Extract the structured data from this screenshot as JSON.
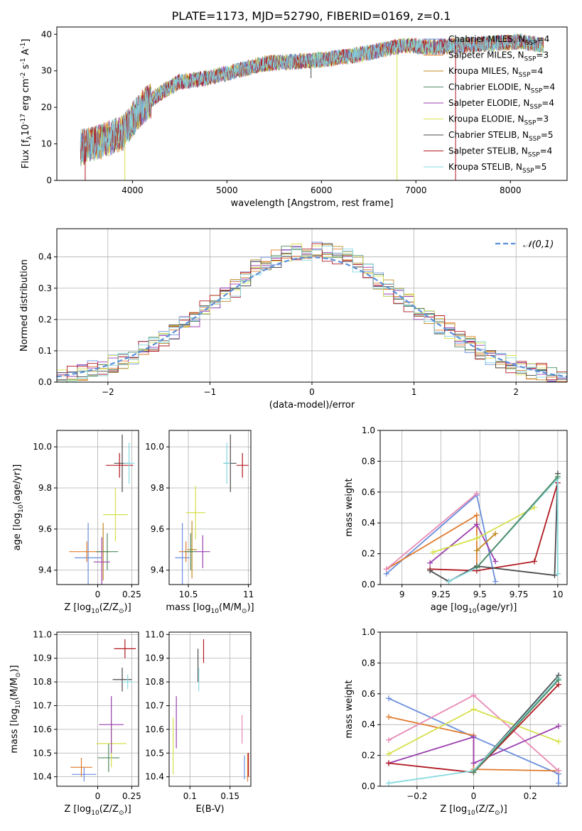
{
  "figure": {
    "title": "PLATE=1173, MJD=52790, FIBERID=0169, z=0.1"
  },
  "series_styles": [
    {
      "name": "Chabrier MILES, N$_{SSP}$=4",
      "color": "#6a8fdc"
    },
    {
      "name": "Salpeter MILES, N$_{SSP}$=3",
      "color": "#e07b2e"
    },
    {
      "name": "Kroupa MILES, N$_{SSP}$=4",
      "color": "#c08a20"
    },
    {
      "name": "Chabrier ELODIE, N$_{SSP}$=4",
      "color": "#4f8a62"
    },
    {
      "name": "Salpeter ELODIE, N$_{SSP}$=4",
      "color": "#9b3fae"
    },
    {
      "name": "Kroupa ELODIE, N$_{SSP}$=3",
      "color": "#d6e04a"
    },
    {
      "name": "Chabrier STELIB, N$_{SSP}$=5",
      "color": "#4a4a4a"
    },
    {
      "name": "Salpeter STELIB, N$_{SSP}$=4",
      "color": "#b01820"
    },
    {
      "name": "Kroupa STELIB, N$_{SSP}$=5",
      "color": "#86d9e0"
    }
  ],
  "chart_data": [
    {
      "id": "spectrum",
      "type": "line",
      "title": "PLATE=1173, MJD=52790, FIBERID=0169, z=0.1",
      "xlabel": "wavelength [Angstrom, rest frame]",
      "ylabel": "Flux [f$_\\lambda$10$^{-17}$ erg cm$^{-2}$ s$^{-1}$ A$^{-1}$]",
      "xlim": [
        3200,
        8600
      ],
      "ylim": [
        0,
        42
      ],
      "xticks": [
        4000,
        5000,
        6000,
        7000,
        8000
      ],
      "yticks": [
        0,
        10,
        20,
        30,
        40
      ],
      "legend": [
        "Chabrier MILES, N_SSP=4",
        "Salpeter MILES, N_SSP=3",
        "Kroupa MILES, N_SSP=4",
        "Chabrier ELODIE, N_SSP=4",
        "Salpeter ELODIE, N_SSP=4",
        "Kroupa ELODIE, N_SSP=3",
        "Chabrier STELIB, N_SSP=5",
        "Salpeter STELIB, N_SSP=4",
        "Kroupa STELIB, N_SSP=5"
      ],
      "legend_placement": "right",
      "continuum": {
        "x": [
          3450,
          3700,
          3900,
          4100,
          4300,
          4500,
          4800,
          5100,
          5400,
          5700,
          6000,
          6300,
          6600,
          6900,
          7200,
          7500,
          7800,
          8100,
          8350
        ],
        "y": [
          9,
          11,
          13,
          20,
          24,
          27,
          28,
          30,
          32,
          32.5,
          33,
          34,
          35.5,
          37,
          36.5,
          37,
          37.5,
          38,
          37
        ]
      },
      "dips": [
        [
          3500,
          0
        ],
        [
          3920,
          0
        ],
        [
          5890,
          28
        ],
        [
          6800,
          0
        ],
        [
          7420,
          0
        ]
      ]
    },
    {
      "id": "residuals",
      "type": "bar",
      "xlabel": "(data-model)/error",
      "ylabel": "Normed distribution",
      "xlim": [
        -2.5,
        2.5
      ],
      "ylim": [
        0,
        0.49
      ],
      "xticks": [
        -2,
        -1,
        0,
        1,
        2
      ],
      "yticks": [
        0.0,
        0.1,
        0.2,
        0.3,
        0.4
      ],
      "grid": true,
      "legend": [
        "$\\mathcal{N}(0,1)$"
      ],
      "legend_placement": "top-right"
    },
    {
      "id": "z-age",
      "type": "scatter",
      "xlabel": "Z [log$_{10}$(Z/Z$_\\odot$)]",
      "ylabel": "age  [log$_{10}$(age/yr)]",
      "xlim": [
        -0.3,
        0.3
      ],
      "ylim": [
        9.33,
        10.08
      ],
      "xticks": [
        0.0,
        0.25
      ],
      "yticks": [
        9.4,
        9.6,
        9.8,
        10.0
      ],
      "grid": true,
      "points": [
        {
          "s": 0,
          "x": -0.07,
          "y": 9.46,
          "xe": 0.1,
          "ye": 0.17
        },
        {
          "s": 1,
          "x": -0.08,
          "y": 9.49,
          "xe": 0.13,
          "ye": 0.05
        },
        {
          "s": 2,
          "x": 0.04,
          "y": 9.49,
          "xe": 0.05,
          "ye": 0.14
        },
        {
          "s": 3,
          "x": 0.07,
          "y": 9.49,
          "xe": 0.08,
          "ye": 0.09
        },
        {
          "s": 4,
          "x": 0.03,
          "y": 9.44,
          "xe": 0.06,
          "ye": 0.12
        },
        {
          "s": 5,
          "x": 0.13,
          "y": 9.67,
          "xe": 0.09,
          "ye": 0.13
        },
        {
          "s": 6,
          "x": 0.18,
          "y": 9.92,
          "xe": 0.06,
          "ye": 0.14
        },
        {
          "s": 7,
          "x": 0.16,
          "y": 9.91,
          "xe": 0.1,
          "ye": 0.06
        },
        {
          "s": 8,
          "x": 0.23,
          "y": 9.92,
          "xe": 0.04,
          "ye": 0.1
        }
      ]
    },
    {
      "id": "mass-age",
      "type": "scatter",
      "xlabel": "mass [log$_{10}$(M/M$_\\odot$)]",
      "ylabel": "",
      "xlim": [
        10.34,
        11.02
      ],
      "ylim": [
        9.33,
        10.08
      ],
      "xticks": [
        10.5,
        11.0
      ],
      "yticks": [
        9.4,
        9.6,
        9.8,
        10.0
      ],
      "grid": true,
      "points": [
        {
          "s": 0,
          "x": 10.45,
          "y": 9.46,
          "xe": 0.06,
          "ye": 0.17
        },
        {
          "s": 1,
          "x": 10.48,
          "y": 9.49,
          "xe": 0.06,
          "ye": 0.05
        },
        {
          "s": 2,
          "x": 10.53,
          "y": 9.5,
          "xe": 0.04,
          "ye": 0.14
        },
        {
          "s": 3,
          "x": 10.52,
          "y": 9.49,
          "xe": 0.05,
          "ye": 0.09
        },
        {
          "s": 4,
          "x": 10.62,
          "y": 9.49,
          "xe": 0.06,
          "ye": 0.08
        },
        {
          "s": 5,
          "x": 10.56,
          "y": 9.68,
          "xe": 0.08,
          "ye": 0.13
        },
        {
          "s": 6,
          "x": 10.85,
          "y": 9.92,
          "xe": 0.05,
          "ye": 0.14
        },
        {
          "s": 7,
          "x": 10.95,
          "y": 9.91,
          "xe": 0.05,
          "ye": 0.06
        },
        {
          "s": 8,
          "x": 10.82,
          "y": 9.92,
          "xe": 0.03,
          "ye": 0.1
        }
      ]
    },
    {
      "id": "age-weight",
      "type": "line",
      "xlabel": "age  [log$_{10}$(age/yr)]",
      "ylabel": "mass weight",
      "xlim": [
        8.86,
        10.06
      ],
      "ylim": [
        0,
        1.0
      ],
      "xticks": [
        9.0,
        9.25,
        9.5,
        9.75,
        10.0
      ],
      "yticks": [
        0.0,
        0.2,
        0.4,
        0.6,
        0.8,
        1.0
      ],
      "grid": true,
      "series": [
        {
          "s": 0,
          "x": [
            8.9,
            9.48,
            9.6
          ],
          "y": [
            0.07,
            0.58,
            0.02
          ]
        },
        {
          "s": 1,
          "x": [
            8.9,
            9.48,
            9.48
          ],
          "y": [
            0.1,
            0.45,
            0.11
          ]
        },
        {
          "s": 4,
          "x": [
            9.18,
            9.48,
            9.6
          ],
          "y": [
            0.14,
            0.39,
            0.15
          ]
        },
        {
          "s": 5,
          "x": [
            9.2,
            9.48,
            9.85
          ],
          "y": [
            0.21,
            0.3,
            0.5
          ]
        },
        {
          "s": 7,
          "x": [
            9.18,
            9.48,
            9.85,
            10.0
          ],
          "y": [
            0.1,
            0.09,
            0.15,
            0.66
          ]
        },
        {
          "s": 6,
          "x": [
            9.18,
            9.3,
            9.48,
            9.98,
            10.0
          ],
          "y": [
            0.09,
            0.02,
            0.12,
            0.06,
            0.72
          ]
        },
        {
          "s": 8,
          "x": [
            9.3,
            9.48,
            10.0,
            10.0
          ],
          "y": [
            0.02,
            0.11,
            0.69,
            0.07
          ]
        },
        {
          "s": 2,
          "x": [
            9.48,
            9.6
          ],
          "y": [
            0.22,
            0.33
          ]
        },
        {
          "s": 3,
          "x": [
            9.48,
            10.0
          ],
          "y": [
            0.11,
            0.7
          ]
        },
        {
          "s": 5,
          "x": [
            8.9,
            9.48
          ],
          "y": [
            0.1,
            0.59
          ],
          "pink": true
        }
      ]
    },
    {
      "id": "z-mass",
      "type": "scatter",
      "xlabel": "Z [log$_{10}$(Z/Z$_\\odot$)]",
      "ylabel": "mass [log$_{10}$(M/M$_\\odot$)]",
      "xlim": [
        -0.3,
        0.3
      ],
      "ylim": [
        10.36,
        11.01
      ],
      "xticks": [
        0.0,
        0.25
      ],
      "yticks": [
        10.4,
        10.5,
        10.6,
        10.7,
        10.8,
        10.9,
        11.0
      ],
      "grid": true,
      "points": [
        {
          "s": 0,
          "x": -0.1,
          "y": 10.41,
          "xe": 0.09,
          "ye": 0.03
        },
        {
          "s": 1,
          "x": -0.12,
          "y": 10.44,
          "xe": 0.08,
          "ye": 0.04
        },
        {
          "s": 3,
          "x": 0.08,
          "y": 10.48,
          "xe": 0.08,
          "ye": 0.06
        },
        {
          "s": 5,
          "x": 0.1,
          "y": 10.54,
          "xe": 0.11,
          "ye": 0.1
        },
        {
          "s": 4,
          "x": 0.1,
          "y": 10.62,
          "xe": 0.09,
          "ye": 0.12
        },
        {
          "s": 6,
          "x": 0.18,
          "y": 10.81,
          "xe": 0.07,
          "ye": 0.05
        },
        {
          "s": 7,
          "x": 0.2,
          "y": 10.94,
          "xe": 0.08,
          "ye": 0.04
        },
        {
          "s": 8,
          "x": 0.22,
          "y": 10.8,
          "xe": 0.04,
          "ye": 0.03
        }
      ]
    },
    {
      "id": "ebv-mass",
      "type": "scatter",
      "xlabel": "E(B-V)",
      "ylabel": "",
      "xlim": [
        0.074,
        0.176
      ],
      "ylim": [
        10.36,
        11.01
      ],
      "xticks": [
        0.1,
        0.15
      ],
      "yticks": [
        10.4,
        10.5,
        10.6,
        10.7,
        10.8,
        10.9,
        11.0
      ],
      "grid": true,
      "points": [
        {
          "s": 5,
          "x": 0.079,
          "y": 10.53,
          "xe": 0,
          "ye": 0.12
        },
        {
          "s": 4,
          "x": 0.083,
          "y": 10.63,
          "xe": 0,
          "ye": 0.11
        },
        {
          "s": 6,
          "x": 0.11,
          "y": 10.87,
          "xe": 0,
          "ye": 0.07
        },
        {
          "s": 8,
          "x": 0.111,
          "y": 10.81,
          "xe": 0,
          "ye": 0.05
        },
        {
          "s": 7,
          "x": 0.117,
          "y": 10.93,
          "xe": 0,
          "ye": 0.05
        },
        {
          "s": 5,
          "x": 0.165,
          "y": 10.6,
          "xe": 0,
          "ye": 0.06,
          "pink": true
        },
        {
          "s": 0,
          "x": 0.168,
          "y": 10.44,
          "xe": 0,
          "ye": 0.05
        },
        {
          "s": 1,
          "x": 0.172,
          "y": 10.44,
          "xe": 0,
          "ye": 0.06
        },
        {
          "s": 7,
          "x": 0.173,
          "y": 10.45,
          "xe": 0,
          "ye": 0.05
        }
      ]
    },
    {
      "id": "z-weight",
      "type": "line",
      "xlabel": "Z [log$_{10}$(Z/Z$_\\odot$)]",
      "ylabel": "mass weight",
      "xlim": [
        -0.33,
        0.33
      ],
      "ylim": [
        0,
        1.0
      ],
      "xticks": [
        -0.2,
        0.0,
        0.2
      ],
      "yticks": [
        0.0,
        0.2,
        0.4,
        0.6,
        0.8,
        1.0
      ],
      "grid": true,
      "series": [
        {
          "s": 0,
          "x": [
            -0.3,
            0.0,
            0.3,
            0.3
          ],
          "y": [
            0.57,
            0.32,
            0.08,
            0.02
          ]
        },
        {
          "s": 1,
          "x": [
            -0.3,
            0.0,
            0.0,
            0.3
          ],
          "y": [
            0.45,
            0.33,
            0.11,
            0.1
          ]
        },
        {
          "s": 5,
          "x": [
            -0.3,
            0.0,
            0.3
          ],
          "y": [
            0.3,
            0.59,
            0.1
          ],
          "pink": true
        },
        {
          "s": 5,
          "x": [
            -0.3,
            0.0,
            0.3
          ],
          "y": [
            0.21,
            0.5,
            0.29
          ]
        },
        {
          "s": 4,
          "x": [
            -0.3,
            0.0,
            0.0,
            0.3
          ],
          "y": [
            0.15,
            0.32,
            0.15,
            0.39
          ]
        },
        {
          "s": 7,
          "x": [
            -0.3,
            0.0,
            0.3
          ],
          "y": [
            0.15,
            0.09,
            0.66
          ]
        },
        {
          "s": 6,
          "x": [
            0.0,
            0.3
          ],
          "y": [
            0.1,
            0.72
          ]
        },
        {
          "s": 8,
          "x": [
            -0.3,
            0.0,
            0.3
          ],
          "y": [
            0.02,
            0.1,
            0.7
          ]
        },
        {
          "s": 3,
          "x": [
            0.0,
            0.3
          ],
          "y": [
            0.09,
            0.69
          ]
        }
      ]
    }
  ]
}
